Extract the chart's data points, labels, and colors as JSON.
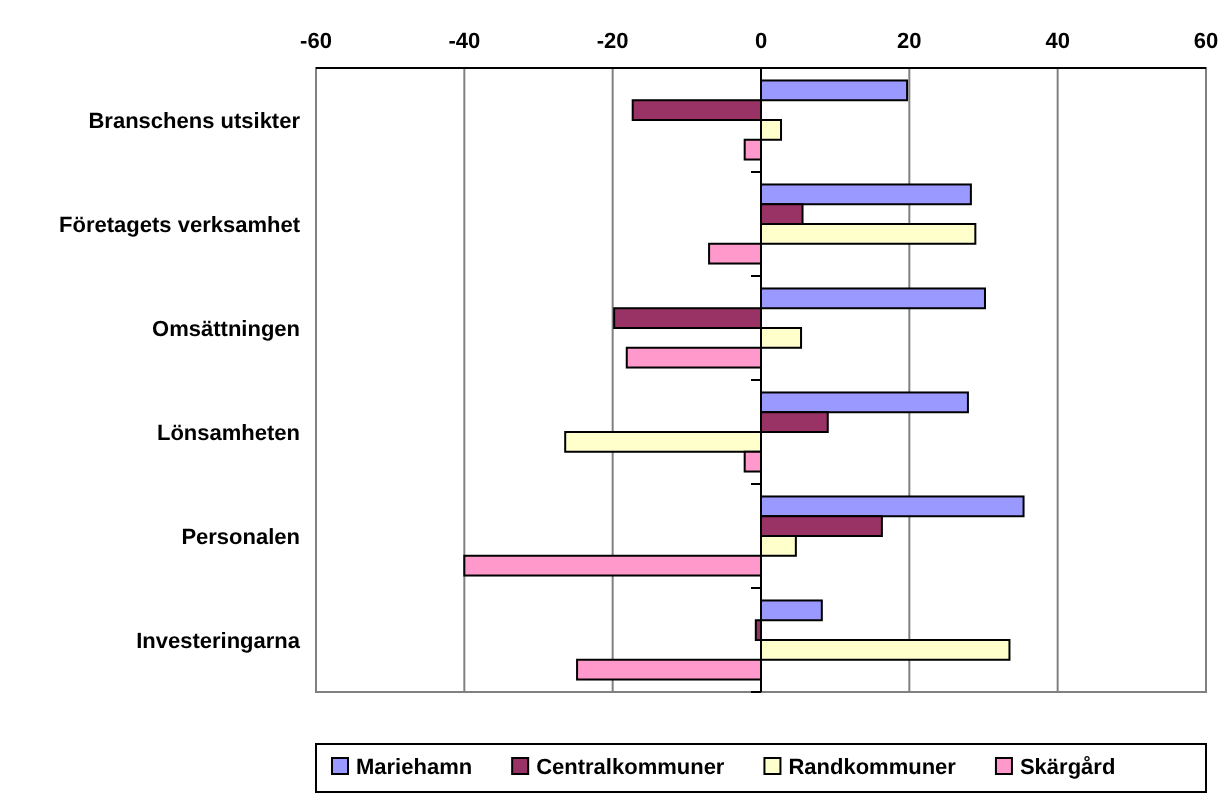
{
  "chart_data": {
    "type": "bar",
    "orientation": "horizontal",
    "categories": [
      "Branschens utsikter",
      "Företagets verksamhet",
      "Omsättningen",
      "Lönsamheten",
      "Personalen",
      "Investeringarna"
    ],
    "series": [
      {
        "name": "Mariehamn",
        "color": "#9999ff",
        "values": [
          19.7,
          28.3,
          30.2,
          27.9,
          35.4,
          8.2
        ]
      },
      {
        "name": "Centralkommuner",
        "color": "#993366",
        "values": [
          -17.3,
          5.6,
          -19.8,
          9.0,
          16.3,
          -0.7
        ]
      },
      {
        "name": "Randkommuner",
        "color": "#ffffcc",
        "values": [
          2.7,
          28.9,
          5.4,
          -26.4,
          4.7,
          33.5
        ]
      },
      {
        "name": "Skärgård",
        "color": "#ff99cc",
        "values": [
          -2.2,
          -7.0,
          -18.1,
          -2.2,
          -40.0,
          -24.8
        ]
      }
    ],
    "xlim": [
      -60,
      60
    ],
    "xticks": [
      -60,
      -40,
      -20,
      0,
      20,
      40,
      60
    ],
    "grid": "x",
    "legend": "bottom"
  }
}
